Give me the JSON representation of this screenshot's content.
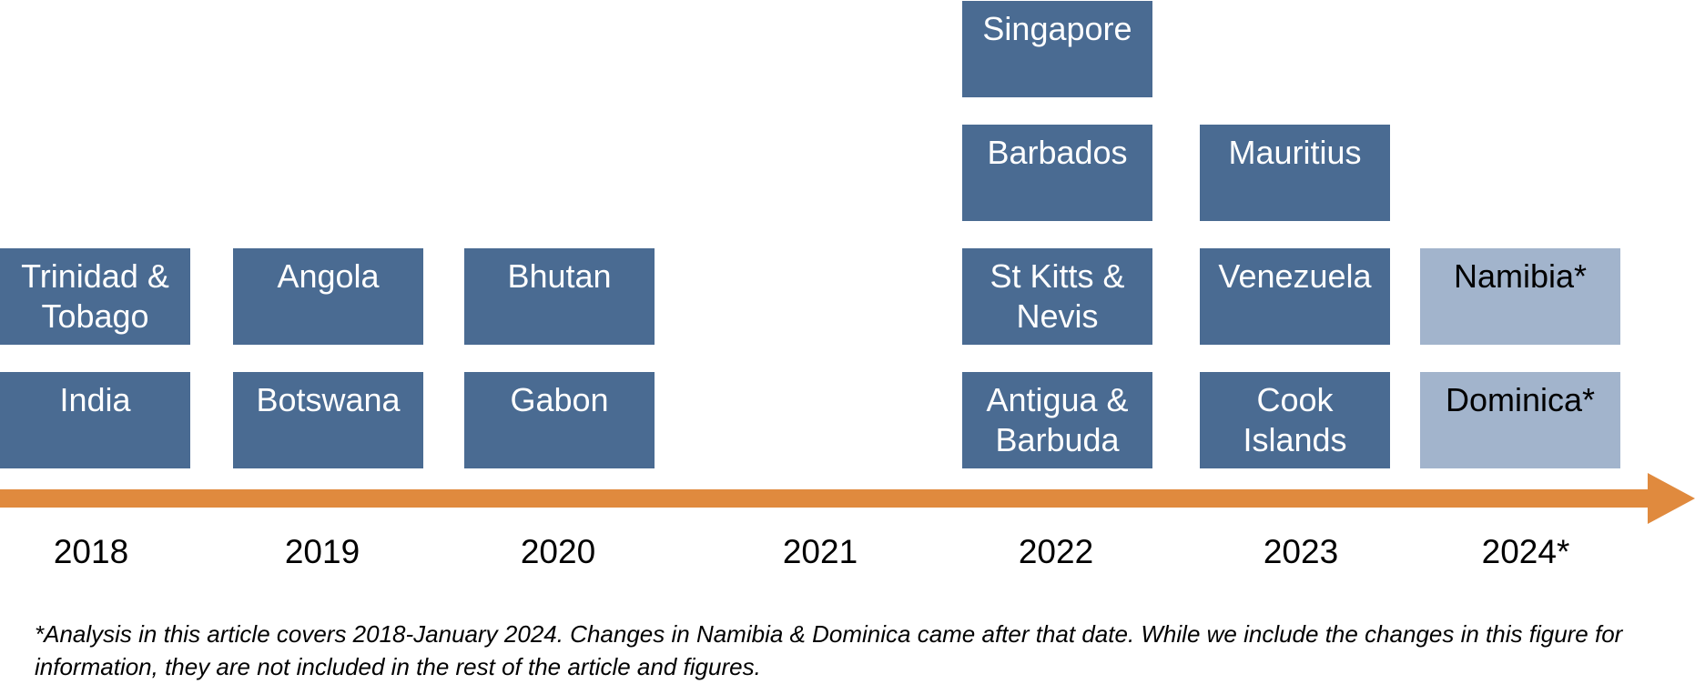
{
  "colors": {
    "enacted": "#4a6b92",
    "post_analysis": "#a2b4cc",
    "arrow": "#e08a3e"
  },
  "years": [
    "2018",
    "2019",
    "2020",
    "2021",
    "2022",
    "2023",
    "2024*"
  ],
  "countries": {
    "y2018": [
      "India",
      "Trinidad & Tobago"
    ],
    "y2019": [
      "Botswana",
      "Angola"
    ],
    "y2020": [
      "Gabon",
      "Bhutan"
    ],
    "y2022": [
      "Antigua & Barbuda",
      "St Kitts & Nevis",
      "Barbados",
      "Singapore"
    ],
    "y2023": [
      "Cook Islands",
      "Venezuela",
      "Mauritius"
    ],
    "y2024": [
      "Dominica*",
      "Namibia*"
    ]
  },
  "footnote": "*Analysis in this article covers 2018-January 2024. Changes in Namibia & Dominica came after that date. While we include the changes in this figure for information, they are not included in the rest of the article and figures."
}
